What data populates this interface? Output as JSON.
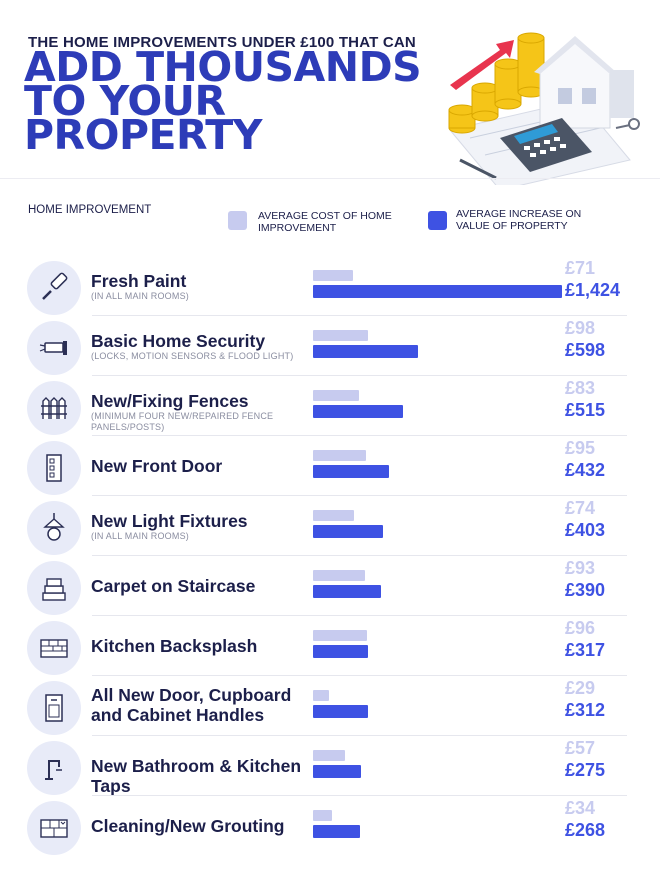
{
  "header": {
    "kicker": "THE HOME IMPROVEMENTS UNDER £100 THAT CAN",
    "title_lines": [
      "ADD THOUSANDS",
      "TO YOUR",
      "PROPERTY"
    ]
  },
  "legend": {
    "column_label": "HOME IMPROVEMENT",
    "cost_label": "AVERAGE COST OF HOME IMPROVEMENT",
    "increase_label": "AVERAGE INCREASE ON VALUE OF PROPERTY"
  },
  "colors": {
    "cost": "#c7cbef",
    "increase": "#3e52e3",
    "title": "#2d3cb8",
    "text": "#1c1f4a"
  },
  "chart_data": {
    "type": "bar",
    "orientation": "horizontal",
    "title": "ADD THOUSANDS TO YOUR PROPERTY",
    "xlim": [
      0,
      1424
    ],
    "categories": [
      "Fresh Paint",
      "Basic Home Security",
      "New/Fixing Fences",
      "New Front Door",
      "New Light Fixtures",
      "Carpet on Staircase",
      "Kitchen Backsplash",
      "All New Door, Cupboard and Cabinet Handles",
      "New Bathroom & Kitchen Taps",
      "Cleaning/New Grouting"
    ],
    "series": [
      {
        "name": "AVERAGE COST OF HOME IMPROVEMENT",
        "values": [
          71,
          98,
          83,
          95,
          74,
          93,
          96,
          29,
          57,
          34
        ]
      },
      {
        "name": "AVERAGE INCREASE ON VALUE OF PROPERTY",
        "values": [
          1424,
          598,
          515,
          432,
          403,
          390,
          317,
          312,
          275,
          268
        ]
      }
    ]
  },
  "rows": [
    {
      "title": "Fresh Paint",
      "subtitle": "(IN ALL MAIN ROOMS)",
      "icon": "paint-roller-icon",
      "cost": 71,
      "cost_label": "£71",
      "increase": 1424,
      "increase_label": "£1,424"
    },
    {
      "title": "Basic Home Security",
      "subtitle": "(LOCKS, MOTION SENSORS & FLOOD LIGHT)",
      "icon": "security-camera-icon",
      "cost": 98,
      "cost_label": "£98",
      "increase": 598,
      "increase_label": "£598"
    },
    {
      "title": "New/Fixing Fences",
      "subtitle": "(MINIMUM FOUR NEW/REPAIRED FENCE PANELS/POSTS)",
      "icon": "fence-icon",
      "cost": 83,
      "cost_label": "£83",
      "increase": 515,
      "increase_label": "£515"
    },
    {
      "title": "New Front Door",
      "subtitle": "",
      "icon": "door-icon",
      "cost": 95,
      "cost_label": "£95",
      "increase": 432,
      "increase_label": "£432"
    },
    {
      "title": "New Light Fixtures",
      "subtitle": "(IN ALL MAIN ROOMS)",
      "icon": "light-bulb-icon",
      "cost": 74,
      "cost_label": "£74",
      "increase": 403,
      "increase_label": "£403"
    },
    {
      "title": "Carpet on Staircase",
      "subtitle": "",
      "icon": "staircase-icon",
      "cost": 93,
      "cost_label": "£93",
      "increase": 390,
      "increase_label": "£390"
    },
    {
      "title": "Kitchen Backsplash",
      "subtitle": "",
      "icon": "tiles-icon",
      "cost": 96,
      "cost_label": "£96",
      "increase": 317,
      "increase_label": "£317"
    },
    {
      "title": "All New Door, Cupboard and Cabinet Handles",
      "subtitle": "",
      "icon": "cabinet-icon",
      "cost": 29,
      "cost_label": "£29",
      "increase": 312,
      "increase_label": "£312"
    },
    {
      "title": "New Bathroom & Kitchen Taps",
      "subtitle": "",
      "icon": "tap-icon",
      "cost": 57,
      "cost_label": "£57",
      "increase": 275,
      "increase_label": "£275"
    },
    {
      "title": "Cleaning/New Grouting",
      "subtitle": "",
      "icon": "grout-tiles-icon",
      "cost": 34,
      "cost_label": "£34",
      "increase": 268,
      "increase_label": "£268"
    }
  ]
}
